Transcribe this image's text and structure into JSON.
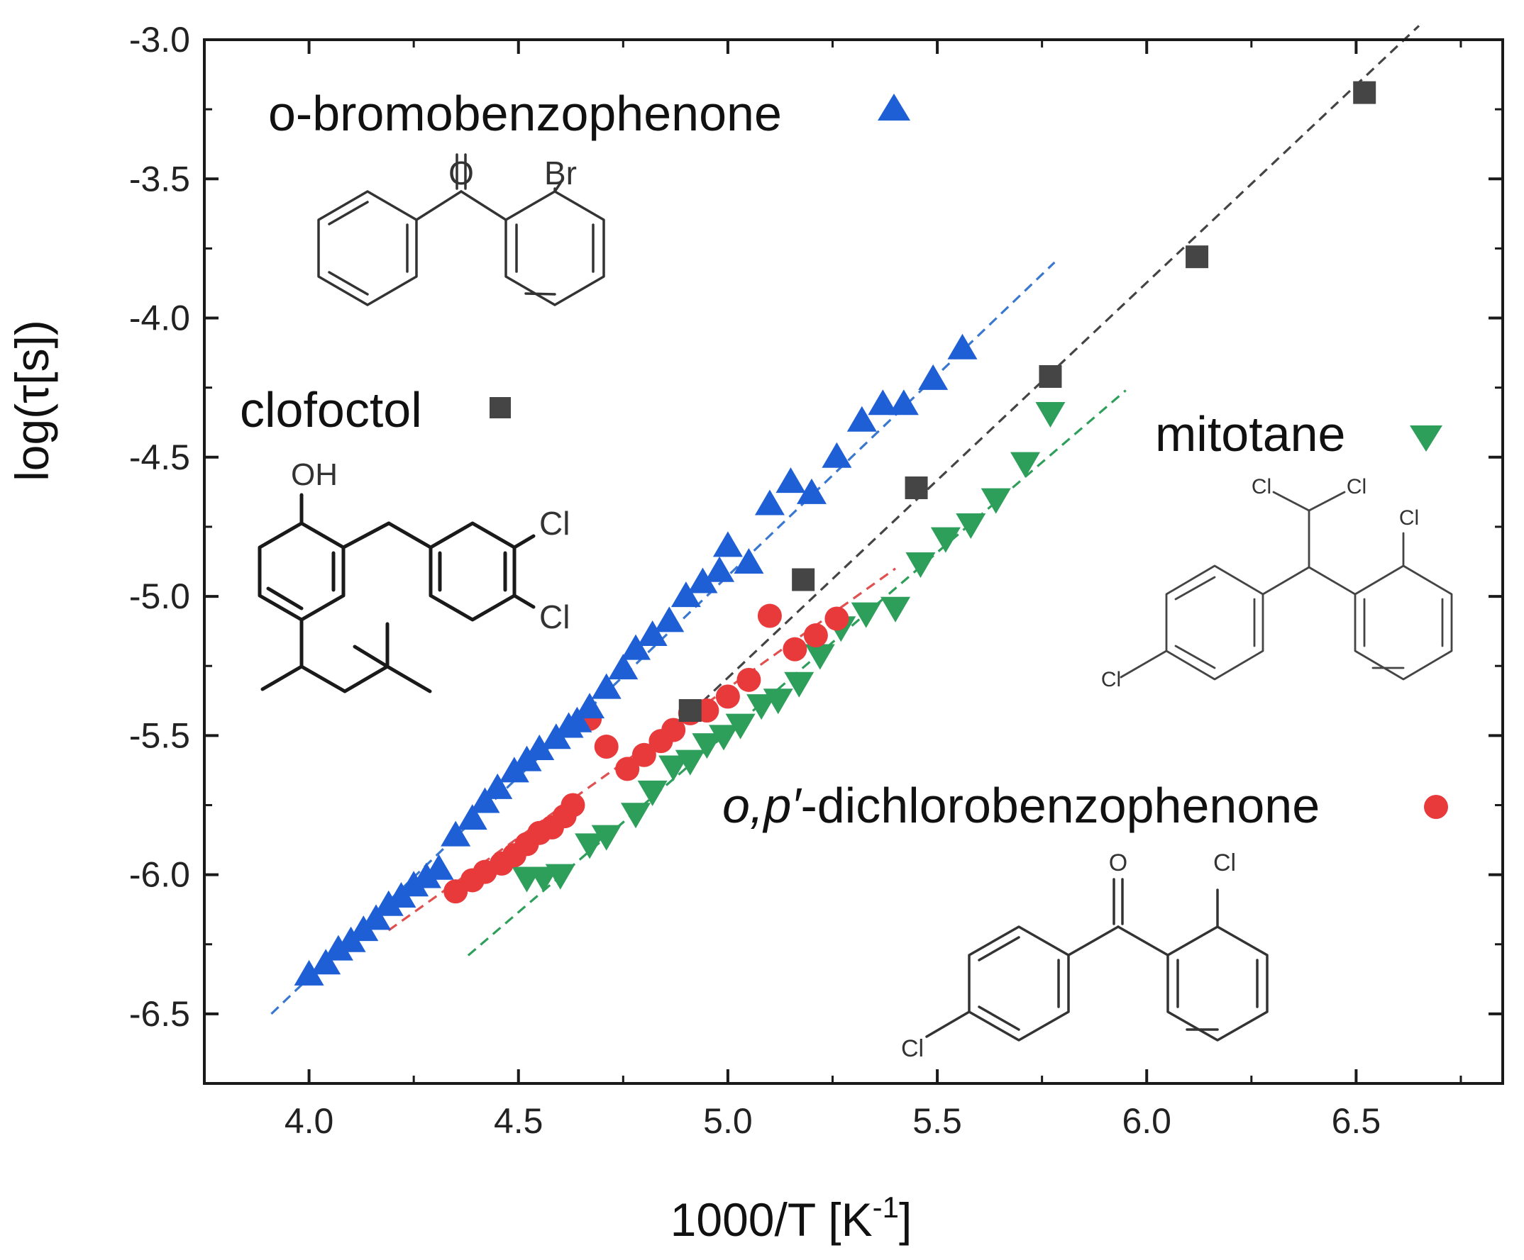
{
  "chart_data": {
    "type": "scatter",
    "title": "",
    "xlabel": "1000/T [K",
    "xlabel_superscript": "-1",
    "xlabel_suffix": "]",
    "ylabel": "log(τ[s])",
    "xlim": [
      3.75,
      6.85
    ],
    "ylim": [
      -6.75,
      -3.0
    ],
    "xticks": [
      4.0,
      4.5,
      5.0,
      5.5,
      6.0,
      6.5
    ],
    "xtick_labels": [
      "4.0",
      "4.5",
      "5.0",
      "5.5",
      "6.0",
      "6.5"
    ],
    "yticks": [
      -3.0,
      -3.5,
      -4.0,
      -4.5,
      -5.0,
      -5.5,
      -6.0,
      -6.5
    ],
    "ytick_labels": [
      "-3.0",
      "-3.5",
      "-4.0",
      "-4.5",
      "-5.0",
      "-5.5",
      "-6.0",
      "-6.5"
    ],
    "grid": false,
    "series": [
      {
        "name": "o-bromobenzophenone",
        "marker": "triangle-up",
        "color": "#1f5fd6",
        "x": [
          4.0,
          4.04,
          4.07,
          4.1,
          4.13,
          4.16,
          4.19,
          4.22,
          4.25,
          4.28,
          4.31,
          4.35,
          4.39,
          4.42,
          4.45,
          4.49,
          4.52,
          4.55,
          4.59,
          4.62,
          4.64,
          4.67,
          4.71,
          4.75,
          4.78,
          4.82,
          4.86,
          4.9,
          4.94,
          4.98,
          5.0,
          5.05,
          5.1,
          5.15,
          5.2,
          5.26,
          5.32,
          5.37,
          5.42,
          5.49,
          5.56
        ],
        "y": [
          -6.36,
          -6.32,
          -6.27,
          -6.24,
          -6.2,
          -6.16,
          -6.11,
          -6.08,
          -6.04,
          -6.01,
          -5.98,
          -5.86,
          -5.8,
          -5.74,
          -5.69,
          -5.63,
          -5.59,
          -5.55,
          -5.51,
          -5.47,
          -5.45,
          -5.4,
          -5.33,
          -5.26,
          -5.19,
          -5.14,
          -5.09,
          -5.0,
          -4.95,
          -4.91,
          -4.82,
          -4.88,
          -4.67,
          -4.59,
          -4.63,
          -4.5,
          -4.37,
          -4.31,
          -4.31,
          -4.22,
          -4.11
        ]
      },
      {
        "name": "clofoctol",
        "marker": "square",
        "color": "#454545",
        "x": [
          4.91,
          5.18,
          5.45,
          5.77,
          6.12,
          6.52
        ],
        "y": [
          -5.41,
          -4.94,
          -4.61,
          -4.21,
          -3.78,
          -3.19
        ]
      },
      {
        "name": "mitotane",
        "marker": "triangle-down",
        "color": "#2e9e5b",
        "x": [
          4.52,
          4.56,
          4.6,
          4.67,
          4.71,
          4.78,
          4.82,
          4.87,
          4.91,
          4.95,
          4.99,
          5.03,
          5.08,
          5.12,
          5.17,
          5.22,
          5.27,
          5.33,
          5.4,
          5.46,
          5.52,
          5.58,
          5.64,
          5.71,
          5.77
        ],
        "y": [
          -6.01,
          -6.01,
          -6.0,
          -5.89,
          -5.86,
          -5.78,
          -5.7,
          -5.61,
          -5.59,
          -5.53,
          -5.5,
          -5.46,
          -5.39,
          -5.37,
          -5.31,
          -5.21,
          -5.11,
          -5.06,
          -5.04,
          -4.88,
          -4.79,
          -4.74,
          -4.65,
          -4.52,
          -4.34
        ]
      },
      {
        "name": "o,p′-dichlorobenzophenone",
        "marker": "circle",
        "color": "#e8393b",
        "x": [
          4.35,
          4.39,
          4.42,
          4.46,
          4.49,
          4.52,
          4.55,
          4.58,
          4.61,
          4.63,
          4.67,
          4.71,
          4.76,
          4.8,
          4.84,
          4.87,
          4.91,
          4.95,
          5.0,
          5.05,
          5.1,
          5.16,
          5.21,
          5.26
        ],
        "y": [
          -6.06,
          -6.02,
          -5.99,
          -5.96,
          -5.93,
          -5.89,
          -5.85,
          -5.83,
          -5.79,
          -5.75,
          -5.44,
          -5.54,
          -5.62,
          -5.57,
          -5.52,
          -5.48,
          -5.42,
          -5.41,
          -5.36,
          -5.3,
          -5.07,
          -5.19,
          -5.14,
          -5.08
        ]
      }
    ],
    "fits": [
      {
        "series": "o-bromobenzophenone",
        "color": "#3a78d0",
        "x": [
          3.91,
          5.78
        ],
        "y": [
          -6.5,
          -3.8
        ]
      },
      {
        "series": "clofoctol",
        "color": "#444444",
        "x": [
          4.91,
          6.65
        ],
        "y": [
          -5.42,
          -2.95
        ]
      },
      {
        "series": "mitotane",
        "color": "#2e9e5b",
        "x": [
          4.38,
          5.95
        ],
        "y": [
          -6.29,
          -4.26
        ]
      },
      {
        "series": "o,p′-dichlorobenzophenone",
        "color": "#e05050",
        "x": [
          4.19,
          5.4
        ],
        "y": [
          -6.2,
          -4.9
        ]
      }
    ]
  },
  "legend": {
    "o_bromo": {
      "label": "o-bromobenzophenone",
      "color": "#1f5fd6",
      "marker": "triangle-up"
    },
    "clofoctol": {
      "label": "clofoctol",
      "color": "#454545",
      "marker": "square"
    },
    "mitotane": {
      "label": "mitotane",
      "color": "#2e9e5b",
      "marker": "triangle-down"
    },
    "dichloro": {
      "label_italic": "o,p′",
      "label_rest": "-dichlorobenzophenone",
      "color": "#e8393b",
      "marker": "circle"
    }
  },
  "structures": {
    "o_bromo": {
      "atom_o": "O",
      "atom_br": "Br"
    },
    "clofoctol": {
      "atom_oh": "OH",
      "atom_cl1": "Cl",
      "atom_cl2": "Cl"
    },
    "mitotane": {
      "atom_cl1": "Cl",
      "atom_cl2": "Cl",
      "atom_cl3": "Cl",
      "atom_cl4": "Cl"
    },
    "dichloro": {
      "atom_o": "O",
      "atom_cl1": "Cl",
      "atom_cl2": "Cl"
    }
  }
}
